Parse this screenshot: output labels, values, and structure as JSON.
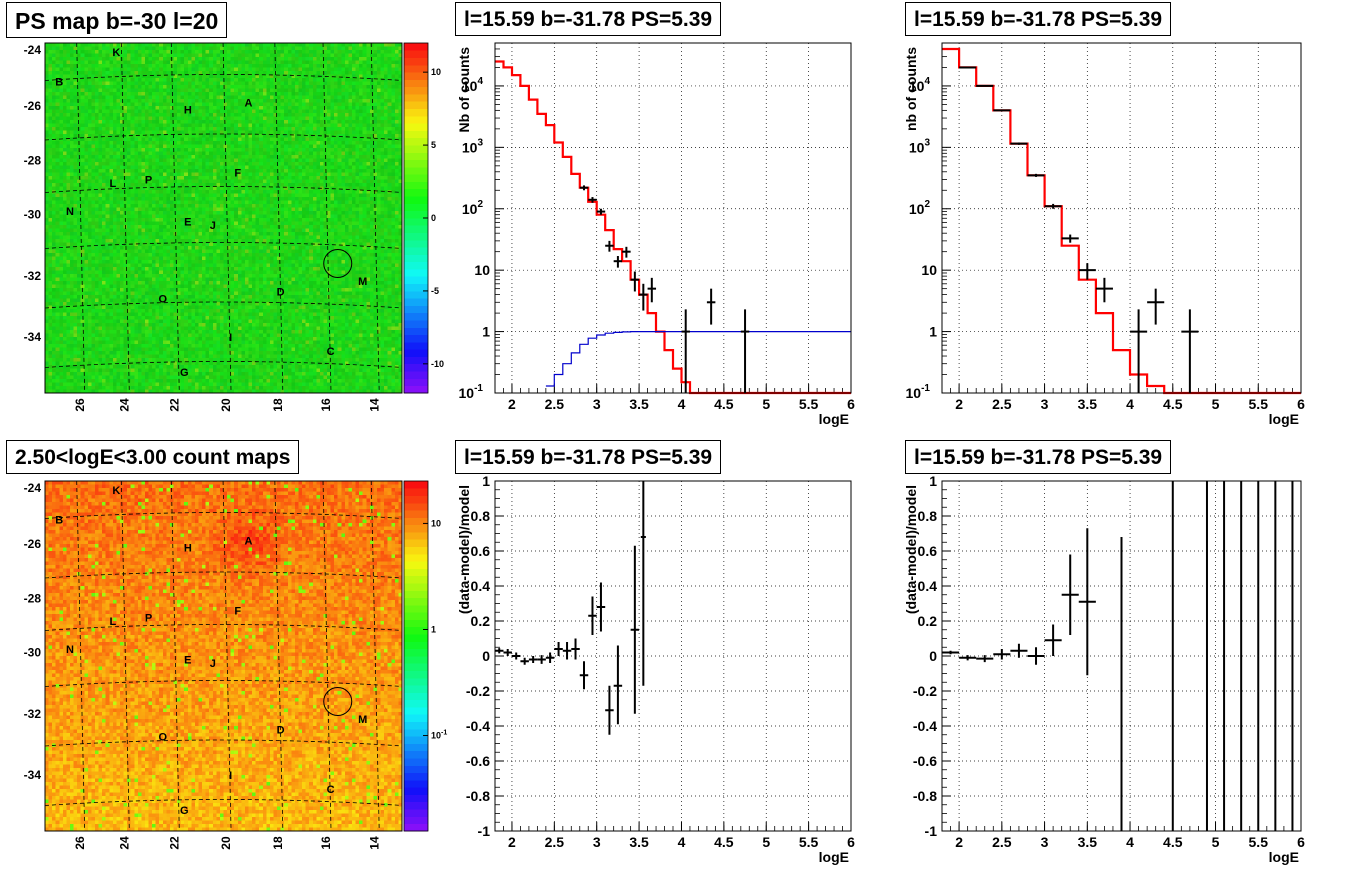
{
  "colors": {
    "model_line": "#ff0000",
    "background_line": "#0000cc",
    "data_points": "#000000",
    "grid": "#000000",
    "map_dominant": "#22e634",
    "count_map_dominant": "#ff8a14"
  },
  "maps": [
    {
      "title": "PS map b=-30 l=20",
      "type": "heatmap",
      "colorscale": "rainbow-linear",
      "colorbar_ticks": [
        "10",
        "5",
        "0",
        "-5",
        "-10"
      ],
      "colorbar_values": [
        10,
        5,
        0,
        -5,
        -10
      ],
      "colorbar_range": [
        -12,
        12
      ],
      "y_ticks": [
        "-24",
        "-26",
        "-28",
        "-30",
        "-32",
        "-34"
      ],
      "x_ticks": [
        "26",
        "24",
        "22",
        "20",
        "18",
        "16",
        "14"
      ],
      "sources": [
        "A",
        "B",
        "C",
        "D",
        "E",
        "F",
        "G",
        "H",
        "I",
        "J",
        "K",
        "L",
        "M",
        "N",
        "O",
        "P"
      ],
      "highlight_source": "M"
    },
    {
      "title": "2.50<logE<3.00 count maps",
      "type": "heatmap",
      "colorscale": "rainbow-log",
      "colorbar_ticks": [
        "10",
        "1",
        "10-1"
      ],
      "colorbar_values": [
        10,
        1,
        0.1
      ],
      "y_ticks": [
        "-24",
        "-26",
        "-28",
        "-30",
        "-32",
        "-34"
      ],
      "x_ticks": [
        "26",
        "24",
        "22",
        "20",
        "18",
        "16",
        "14"
      ],
      "sources": [
        "A",
        "B",
        "C",
        "D",
        "E",
        "F",
        "G",
        "H",
        "I",
        "J",
        "K",
        "L",
        "M",
        "N",
        "O",
        "P"
      ],
      "highlight_source": "M"
    }
  ],
  "chart_data": [
    {
      "type": "line",
      "title": "l=15.59 b=-31.78 PS=5.39",
      "xlabel": "logE",
      "ylabel": "Nb of counts",
      "ylog": true,
      "xlim": [
        1.8,
        6.0
      ],
      "ylim": [
        0.1,
        50000
      ],
      "x_ticks": [
        "2",
        "2.5",
        "3",
        "3.5",
        "4",
        "4.5",
        "5",
        "5.5",
        "6"
      ],
      "y_ticks": [
        "10⁴",
        "10³",
        "10²",
        "10",
        "1",
        "10⁻¹"
      ],
      "grid": true,
      "series": [
        {
          "kind": "step",
          "color": "#ff0000",
          "edges": [
            1.8,
            1.9,
            2.0,
            2.1,
            2.2,
            2.3,
            2.4,
            2.5,
            2.6,
            2.7,
            2.8,
            2.9,
            3.0,
            3.1,
            3.2,
            3.3,
            3.4,
            3.5,
            3.6,
            3.7,
            3.8,
            3.9,
            4.0,
            4.1,
            4.2,
            6.0
          ],
          "values": [
            25000,
            20000,
            15000,
            10000,
            6000,
            3500,
            2300,
            1200,
            700,
            370,
            220,
            130,
            80,
            45,
            22,
            14,
            7,
            4,
            2,
            1.0,
            0.5,
            0.25,
            0.15,
            0.1,
            0.1
          ]
        },
        {
          "kind": "step",
          "color": "#0000cc",
          "edges": [
            2.4,
            2.5,
            2.6,
            2.7,
            2.8,
            2.9,
            3.0,
            3.1,
            3.2,
            3.3,
            3.4,
            6.0
          ],
          "values": [
            0.13,
            0.2,
            0.3,
            0.45,
            0.62,
            0.78,
            0.88,
            0.94,
            0.97,
            0.99,
            1.0
          ]
        },
        {
          "kind": "errorbar",
          "color": "#000000",
          "points": [
            {
              "x": 2.85,
              "y": 220,
              "xerr": 0.05,
              "ylo": 200,
              "yhi": 240
            },
            {
              "x": 2.95,
              "y": 140,
              "xerr": 0.05,
              "ylo": 125,
              "yhi": 155
            },
            {
              "x": 3.05,
              "y": 90,
              "xerr": 0.05,
              "ylo": 80,
              "yhi": 100
            },
            {
              "x": 3.15,
              "y": 25,
              "xerr": 0.05,
              "ylo": 20,
              "yhi": 30
            },
            {
              "x": 3.25,
              "y": 14,
              "xerr": 0.05,
              "ylo": 11,
              "yhi": 17
            },
            {
              "x": 3.35,
              "y": 20,
              "xerr": 0.05,
              "ylo": 16,
              "yhi": 24
            },
            {
              "x": 3.45,
              "y": 7,
              "xerr": 0.05,
              "ylo": 4.5,
              "yhi": 9.5
            },
            {
              "x": 3.55,
              "y": 4,
              "xerr": 0.05,
              "ylo": 2.2,
              "yhi": 6
            },
            {
              "x": 3.65,
              "y": 5,
              "xerr": 0.05,
              "ylo": 3,
              "yhi": 7.5
            },
            {
              "x": 4.05,
              "y": 1,
              "xerr": 0.05,
              "ylo": 0.1,
              "yhi": 2.3
            },
            {
              "x": 4.35,
              "y": 3,
              "xerr": 0.05,
              "ylo": 1.3,
              "yhi": 5
            },
            {
              "x": 4.75,
              "y": 1,
              "xerr": 0.05,
              "ylo": 0.1,
              "yhi": 2.3
            }
          ]
        }
      ]
    },
    {
      "type": "line",
      "title": "l=15.59 b=-31.78 PS=5.39",
      "xlabel": "logE",
      "ylabel": "nb of counts",
      "ylog": true,
      "xlim": [
        1.8,
        6.0
      ],
      "ylim": [
        0.1,
        50000
      ],
      "x_ticks": [
        "2",
        "2.5",
        "3",
        "3.5",
        "4",
        "4.5",
        "5",
        "5.5",
        "6"
      ],
      "y_ticks": [
        "10⁴",
        "10³",
        "10²",
        "10",
        "1",
        "10⁻¹"
      ],
      "grid": true,
      "series": [
        {
          "kind": "step",
          "color": "#ff0000",
          "edges": [
            1.8,
            2.0,
            2.2,
            2.4,
            2.6,
            2.8,
            3.0,
            3.2,
            3.4,
            3.6,
            3.8,
            4.0,
            4.2,
            4.4,
            6.0
          ],
          "values": [
            40000,
            20000,
            10000,
            4000,
            1150,
            350,
            110,
            25,
            7,
            2,
            0.5,
            0.2,
            0.13,
            0.1
          ]
        },
        {
          "kind": "errorbar",
          "color": "#000000",
          "points": [
            {
              "x": 2.1,
              "y": 20000,
              "xerr": 0.1,
              "ylo": 19500,
              "yhi": 20500
            },
            {
              "x": 2.3,
              "y": 10000,
              "xerr": 0.1,
              "ylo": 9800,
              "yhi": 10200
            },
            {
              "x": 2.5,
              "y": 4000,
              "xerr": 0.1,
              "ylo": 3900,
              "yhi": 4100
            },
            {
              "x": 2.7,
              "y": 1150,
              "xerr": 0.1,
              "ylo": 1100,
              "yhi": 1200
            },
            {
              "x": 2.9,
              "y": 350,
              "xerr": 0.1,
              "ylo": 330,
              "yhi": 370
            },
            {
              "x": 3.1,
              "y": 110,
              "xerr": 0.1,
              "ylo": 100,
              "yhi": 120
            },
            {
              "x": 3.3,
              "y": 33,
              "xerr": 0.1,
              "ylo": 28,
              "yhi": 38
            },
            {
              "x": 3.5,
              "y": 10,
              "xerr": 0.1,
              "ylo": 7,
              "yhi": 13
            },
            {
              "x": 3.7,
              "y": 5,
              "xerr": 0.1,
              "ylo": 3,
              "yhi": 7.5
            },
            {
              "x": 4.1,
              "y": 1,
              "xerr": 0.1,
              "ylo": 0.1,
              "yhi": 2.3
            },
            {
              "x": 4.3,
              "y": 3,
              "xerr": 0.1,
              "ylo": 1.3,
              "yhi": 5
            },
            {
              "x": 4.7,
              "y": 1,
              "xerr": 0.1,
              "ylo": 0.1,
              "yhi": 2.3
            }
          ]
        }
      ]
    },
    {
      "type": "scatter",
      "title": "l=15.59 b=-31.78 PS=5.39",
      "xlabel": "logE",
      "ylabel": "(data-model)/model",
      "ylog": false,
      "xlim": [
        1.8,
        6.0
      ],
      "ylim": [
        -1,
        1
      ],
      "x_ticks": [
        "2",
        "2.5",
        "3",
        "3.5",
        "4",
        "4.5",
        "5",
        "5.5",
        "6"
      ],
      "y_ticks": [
        "1",
        "0.8",
        "0.6",
        "0.4",
        "0.2",
        "0",
        "-0.2",
        "-0.4",
        "-0.6",
        "-0.8",
        "-1"
      ],
      "grid": true,
      "series": [
        {
          "kind": "errorbar",
          "color": "#000000",
          "points": [
            {
              "x": 1.85,
              "y": 0.03,
              "xerr": 0.05,
              "ylo": 0.015,
              "yhi": 0.045
            },
            {
              "x": 1.95,
              "y": 0.02,
              "xerr": 0.05,
              "ylo": 0.0,
              "yhi": 0.04
            },
            {
              "x": 2.05,
              "y": 0.0,
              "xerr": 0.05,
              "ylo": -0.02,
              "yhi": 0.02
            },
            {
              "x": 2.15,
              "y": -0.03,
              "xerr": 0.05,
              "ylo": -0.05,
              "yhi": -0.01
            },
            {
              "x": 2.25,
              "y": -0.02,
              "xerr": 0.05,
              "ylo": -0.04,
              "yhi": 0.0
            },
            {
              "x": 2.35,
              "y": -0.02,
              "xerr": 0.05,
              "ylo": -0.045,
              "yhi": 0.005
            },
            {
              "x": 2.45,
              "y": -0.01,
              "xerr": 0.05,
              "ylo": -0.04,
              "yhi": 0.02
            },
            {
              "x": 2.55,
              "y": 0.04,
              "xerr": 0.05,
              "ylo": 0.0,
              "yhi": 0.08
            },
            {
              "x": 2.65,
              "y": 0.03,
              "xerr": 0.05,
              "ylo": -0.02,
              "yhi": 0.08
            },
            {
              "x": 2.75,
              "y": 0.04,
              "xerr": 0.05,
              "ylo": -0.02,
              "yhi": 0.1
            },
            {
              "x": 2.85,
              "y": -0.11,
              "xerr": 0.05,
              "ylo": -0.19,
              "yhi": -0.03
            },
            {
              "x": 2.95,
              "y": 0.23,
              "xerr": 0.05,
              "ylo": 0.12,
              "yhi": 0.34
            },
            {
              "x": 3.05,
              "y": 0.28,
              "xerr": 0.05,
              "ylo": 0.14,
              "yhi": 0.42
            },
            {
              "x": 3.15,
              "y": -0.31,
              "xerr": 0.05,
              "ylo": -0.45,
              "yhi": -0.17
            },
            {
              "x": 3.25,
              "y": -0.17,
              "xerr": 0.05,
              "ylo": -0.39,
              "yhi": 0.06
            },
            {
              "x": 3.45,
              "y": 0.15,
              "xerr": 0.05,
              "ylo": -0.33,
              "yhi": 0.63
            },
            {
              "x": 3.55,
              "y": 0.68,
              "xerr": 0.03,
              "ylo": -0.17,
              "yhi": 1.0
            }
          ]
        }
      ]
    },
    {
      "type": "scatter",
      "title": "l=15.59 b=-31.78 PS=5.39",
      "xlabel": "logE",
      "ylabel": "(data-model)/model",
      "ylog": false,
      "xlim": [
        1.8,
        6.0
      ],
      "ylim": [
        -1,
        1
      ],
      "x_ticks": [
        "2",
        "2.5",
        "3",
        "3.5",
        "4",
        "4.5",
        "5",
        "5.5",
        "6"
      ],
      "y_ticks": [
        "1",
        "0.8",
        "0.6",
        "0.4",
        "0.2",
        "0",
        "-0.2",
        "-0.4",
        "-0.6",
        "-0.8",
        "-1"
      ],
      "grid": true,
      "series": [
        {
          "kind": "errorbar",
          "color": "#000000",
          "points": [
            {
              "x": 1.9,
              "y": 0.02,
              "xerr": 0.1,
              "ylo": 0.01,
              "yhi": 0.03
            },
            {
              "x": 2.1,
              "y": -0.01,
              "xerr": 0.1,
              "ylo": -0.025,
              "yhi": 0.005
            },
            {
              "x": 2.3,
              "y": -0.015,
              "xerr": 0.1,
              "ylo": -0.035,
              "yhi": 0.005
            },
            {
              "x": 2.5,
              "y": 0.01,
              "xerr": 0.1,
              "ylo": -0.02,
              "yhi": 0.04
            },
            {
              "x": 2.7,
              "y": 0.03,
              "xerr": 0.1,
              "ylo": -0.01,
              "yhi": 0.07
            },
            {
              "x": 2.9,
              "y": 0.0,
              "xerr": 0.1,
              "ylo": -0.05,
              "yhi": 0.05
            },
            {
              "x": 3.1,
              "y": 0.09,
              "xerr": 0.1,
              "ylo": 0.0,
              "yhi": 0.18
            },
            {
              "x": 3.3,
              "y": 0.35,
              "xerr": 0.1,
              "ylo": 0.12,
              "yhi": 0.58
            },
            {
              "x": 3.5,
              "y": 0.31,
              "xerr": 0.1,
              "ylo": -0.11,
              "yhi": 0.73
            },
            {
              "x": 3.9,
              "y": -1.0,
              "xerr": 0.0,
              "ylo": -1.0,
              "yhi": 0.68
            },
            {
              "x": 4.5,
              "y": 1.0,
              "xerr": 0.0,
              "ylo": -1.0,
              "yhi": 1.0
            },
            {
              "x": 4.9,
              "y": 1.0,
              "xerr": 0.0,
              "ylo": -1.0,
              "yhi": 1.0
            },
            {
              "x": 5.1,
              "y": 1.0,
              "xerr": 0.0,
              "ylo": -1.0,
              "yhi": 1.0
            },
            {
              "x": 5.3,
              "y": 1.0,
              "xerr": 0.0,
              "ylo": -1.0,
              "yhi": 1.0
            },
            {
              "x": 5.5,
              "y": 1.0,
              "xerr": 0.0,
              "ylo": -1.0,
              "yhi": 1.0
            },
            {
              "x": 5.7,
              "y": 1.0,
              "xerr": 0.0,
              "ylo": -1.0,
              "yhi": 1.0
            },
            {
              "x": 5.9,
              "y": 1.0,
              "xerr": 0.0,
              "ylo": -1.0,
              "yhi": 1.0
            }
          ]
        }
      ]
    }
  ]
}
